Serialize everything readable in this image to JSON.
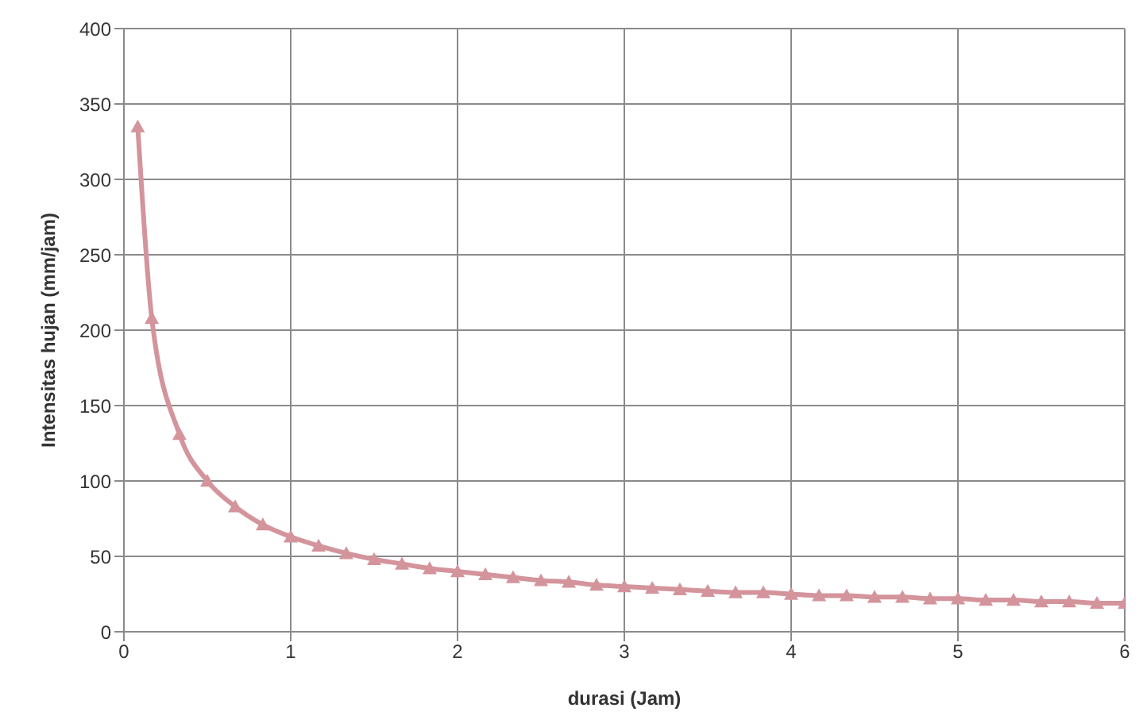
{
  "chart_data": {
    "type": "line",
    "xlabel": "durasi (Jam)",
    "ylabel": "Intensitas hujan (mm/jam)",
    "x": [
      0.083,
      0.167,
      0.333,
      0.5,
      0.667,
      0.833,
      1,
      1.167,
      1.333,
      1.5,
      1.667,
      1.833,
      2,
      2.167,
      2.333,
      2.5,
      2.667,
      2.833,
      3,
      3.167,
      3.333,
      3.5,
      3.667,
      3.833,
      4,
      4.167,
      4.333,
      4.5,
      4.667,
      4.833,
      5,
      5.167,
      5.333,
      5.5,
      5.667,
      5.833,
      6
    ],
    "series": [
      {
        "color": "#d4949c",
        "values": [
          335,
          208,
          131,
          100,
          83,
          71,
          63,
          57,
          52,
          48,
          45,
          42,
          40,
          38,
          36,
          34,
          33,
          31,
          30,
          29,
          28,
          27,
          26,
          26,
          25,
          24,
          24,
          23,
          23,
          22,
          22,
          21,
          21,
          20,
          20,
          19,
          19
        ]
      }
    ],
    "xlim": [
      0,
      6
    ],
    "xticks": [
      0,
      1,
      2,
      3,
      4,
      5,
      6
    ],
    "ylim": [
      0,
      400
    ],
    "yticks": [
      0,
      50,
      100,
      150,
      200,
      250,
      300,
      350,
      400
    ],
    "grid": true,
    "marker": "triangle",
    "line_style": "solid"
  }
}
